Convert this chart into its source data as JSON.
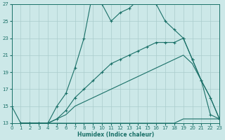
{
  "xlabel": "Humidex (Indice chaleur)",
  "bg_color": "#cce8e8",
  "grid_color": "#aacccc",
  "line_color": "#1a7068",
  "xlim": [
    0,
    23
  ],
  "ylim": [
    13,
    27
  ],
  "xticks": [
    0,
    1,
    2,
    3,
    4,
    5,
    6,
    7,
    8,
    9,
    10,
    11,
    12,
    13,
    14,
    15,
    16,
    17,
    18,
    19,
    20,
    21,
    22,
    23
  ],
  "yticks": [
    13,
    15,
    17,
    19,
    21,
    23,
    25,
    27
  ],
  "line1_x": [
    0,
    1,
    2,
    3,
    4,
    5,
    6,
    7,
    8,
    9,
    10,
    11,
    12,
    13,
    14,
    15,
    16,
    17,
    18,
    19,
    20,
    21,
    22,
    23
  ],
  "line1_y": [
    15,
    13,
    13,
    13,
    13,
    15,
    16.5,
    19.5,
    23,
    28.5,
    27,
    25,
    26,
    26.5,
    27.5,
    28.5,
    27,
    25,
    24,
    23,
    20.5,
    18,
    14,
    13.5
  ],
  "line2_x": [
    1,
    2,
    3,
    4,
    5,
    6,
    7,
    8,
    9,
    10,
    11,
    12,
    13,
    14,
    15,
    16,
    17,
    18,
    19,
    20,
    21,
    22,
    23
  ],
  "line2_y": [
    13,
    13,
    13,
    13,
    13.5,
    14.5,
    16,
    17,
    18,
    19,
    20,
    20.5,
    21,
    21.5,
    22,
    22.5,
    22.5,
    22.5,
    23,
    20.5,
    18,
    16,
    13.5
  ],
  "line3_x": [
    1,
    2,
    3,
    4,
    5,
    6,
    7,
    8,
    9,
    10,
    11,
    12,
    13,
    14,
    15,
    16,
    17,
    18,
    19,
    20,
    21,
    22,
    23
  ],
  "line3_y": [
    13,
    13,
    13,
    13,
    13.5,
    14,
    15,
    15.5,
    16,
    16.5,
    17,
    17.5,
    18,
    18.5,
    19,
    19.5,
    20,
    20.5,
    21,
    20,
    18,
    16,
    13.5
  ],
  "line4_x": [
    1,
    2,
    3,
    4,
    5,
    6,
    7,
    8,
    9,
    10,
    11,
    12,
    13,
    14,
    15,
    16,
    17,
    18,
    19,
    20,
    21,
    22,
    23
  ],
  "line4_y": [
    13,
    13,
    13,
    13,
    13,
    13,
    13,
    13,
    13,
    13,
    13,
    13,
    13,
    13,
    13,
    13,
    13,
    13,
    13.5,
    13.5,
    13.5,
    13.5,
    13.5
  ]
}
